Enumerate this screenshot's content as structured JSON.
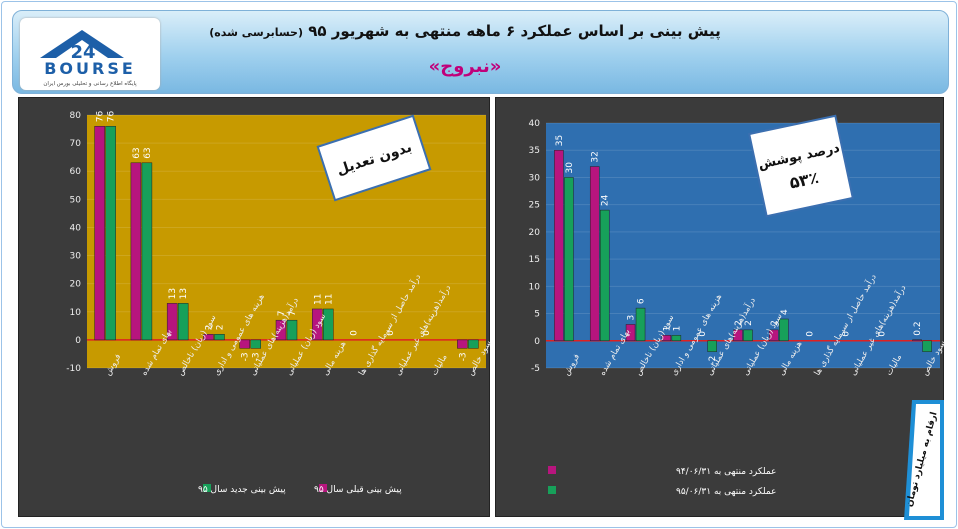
{
  "header": {
    "title": "پیش بینی بر اساس عملکرد ۶ ماهه منتهی به شهریور ۹۵",
    "subtitle": "(حسابرسی شده)",
    "company": "«نبروج»"
  },
  "logo": {
    "number": "24",
    "name": "BOURSE",
    "tagline": "پایگاه اطلاع رسانی و تحلیلی بورس ایران"
  },
  "unit_note": "ارقام به میلیارد تومان",
  "colors": {
    "left_plot_bg": "#c79a00",
    "right_plot_bg": "#2f6fb0",
    "series_magenta": "#b7157e",
    "series_green": "#17a05a",
    "zero_line": "#e02020"
  },
  "chart_data": [
    {
      "type": "bar",
      "annotation": "بدون تعدیل",
      "categories": [
        "فروش",
        "بهای تمام شده",
        "سود (زیان) ناخالص",
        "هزینه های عمومی و اداری",
        "درآمد(هزینه)های عملیاتی",
        "سود (زیان) عملیاتی",
        "هزینه مالی",
        "درآمد حاصل از سرمایه گذاری ها",
        "درآمد(هزینه)های غیر عملیاتی",
        "مالیات",
        "سود خالص"
      ],
      "series": [
        {
          "name": "پیش بینی قبلی سال ۹۵",
          "values": [
            76,
            63,
            13,
            2,
            -3,
            7,
            11,
            0,
            0,
            0,
            -3
          ],
          "labels": [
            "76",
            "63",
            "13",
            "2",
            "-3",
            "7",
            "11",
            "0",
            "0",
            "0",
            "-3"
          ]
        },
        {
          "name": "پیش بینی جدید سال ۹۵",
          "values": [
            76,
            63,
            13,
            2,
            -3,
            7,
            11,
            0,
            0,
            0,
            -3
          ],
          "labels": [
            "76",
            "63",
            "13",
            "2",
            "-3",
            "7",
            "11",
            "",
            "",
            "",
            ""
          ]
        }
      ],
      "yticks": [
        "80",
        "70",
        "60",
        "50",
        "40",
        "30",
        "20",
        "10",
        "0",
        "-10"
      ],
      "ylim": [
        -10,
        80
      ],
      "legend": "bottom"
    },
    {
      "type": "bar",
      "annotation": [
        "درصد پوشش",
        "۵۳٪"
      ],
      "categories": [
        "فروش",
        "بهای تمام شده",
        "سود (زیان) ناخالص",
        "هزینه های عمومی و اداری",
        "درآمد(هزینه)های عملیاتی",
        "سود (زیان) عملیاتی",
        "هزینه مالی",
        "درآمد حاصل از سرمایه گذاری ها",
        "درآمد(هزینه)های غیر عملیاتی",
        "مالیات",
        "سود خالص"
      ],
      "series": [
        {
          "name": "عملکرد منتهی به ۹۴/۰۶/۳۱",
          "values": [
            35,
            32,
            3,
            1,
            0,
            2,
            2,
            0,
            0,
            0,
            0.2
          ],
          "labels": [
            "35",
            "32",
            "3",
            "1",
            "0",
            "2",
            "2",
            "0",
            "0",
            "0",
            "0.2"
          ]
        },
        {
          "name": "عملکرد منتهی به ۹۵/۰۶/۳۱",
          "values": [
            30,
            24,
            6,
            1,
            -2,
            2,
            4,
            0,
            0,
            0,
            -2
          ],
          "labels": [
            "30",
            "24",
            "6",
            "1",
            "-2",
            "2",
            "4",
            "",
            "",
            "",
            ""
          ]
        }
      ],
      "yticks": [
        "40",
        "35",
        "30",
        "25",
        "20",
        "15",
        "10",
        "5",
        "0",
        "-5"
      ],
      "ylim": [
        -5,
        40
      ],
      "legend": "bottom-left"
    }
  ]
}
